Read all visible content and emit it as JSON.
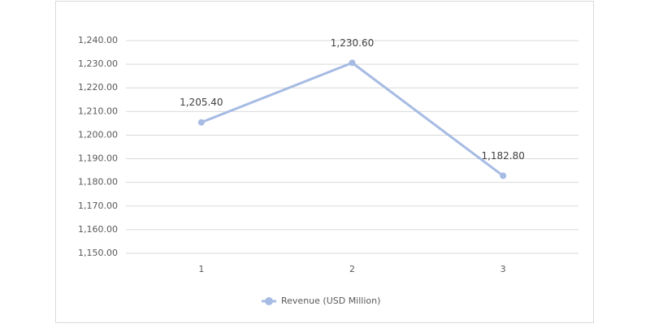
{
  "chart_data": {
    "type": "line",
    "categories": [
      "1",
      "2",
      "3"
    ],
    "series": [
      {
        "name": "Revenue (USD Million)",
        "color": "#a6bbe3",
        "values": [
          1205.4,
          1230.6,
          1182.8
        ],
        "value_labels": [
          "1,205.40",
          "1,230.60",
          "1,182.80"
        ]
      }
    ],
    "ylim": [
      1150,
      1240
    ],
    "yticks": [
      {
        "value": 1150,
        "label": "1,150.00"
      },
      {
        "value": 1160,
        "label": "1,160.00"
      },
      {
        "value": 1170,
        "label": "1,170.00"
      },
      {
        "value": 1180,
        "label": "1,180.00"
      },
      {
        "value": 1190,
        "label": "1,190.00"
      },
      {
        "value": 1200,
        "label": "1,200.00"
      },
      {
        "value": 1210,
        "label": "1,210.00"
      },
      {
        "value": 1220,
        "label": "1,220.00"
      },
      {
        "value": 1230,
        "label": "1,230.00"
      },
      {
        "value": 1240,
        "label": "1,240.00"
      }
    ],
    "grid": true,
    "legend": "bottom"
  }
}
